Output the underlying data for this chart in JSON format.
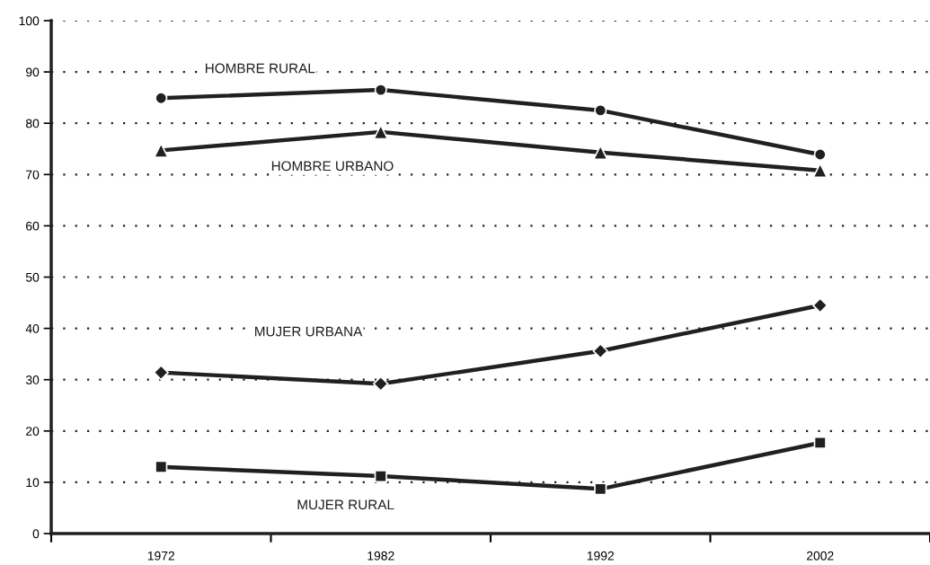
{
  "chart_data": {
    "type": "line",
    "categories": [
      "1972",
      "1982",
      "1992",
      "2002"
    ],
    "series": [
      {
        "name": "HOMBRE RURAL",
        "color": "#231f20",
        "marker": "circle",
        "values": [
          84.9,
          86.5,
          82.5,
          73.9
        ]
      },
      {
        "name": "HOMBRE URBANO",
        "color": "#231f20",
        "marker": "triangle",
        "values": [
          74.7,
          78.3,
          74.3,
          70.8
        ]
      },
      {
        "name": "MUJER URBANA",
        "color": "#231f20",
        "marker": "diamond",
        "values": [
          31.4,
          29.2,
          35.6,
          44.5
        ]
      },
      {
        "name": "MUJER RURAL",
        "color": "#231f20",
        "marker": "square",
        "values": [
          13.0,
          11.2,
          8.7,
          17.7
        ]
      }
    ],
    "ylim": [
      0,
      100
    ],
    "yticks": [
      0,
      10,
      20,
      30,
      40,
      50,
      60,
      70,
      80,
      90,
      100
    ],
    "grid": "y",
    "legend": false,
    "line_style": "solid"
  }
}
